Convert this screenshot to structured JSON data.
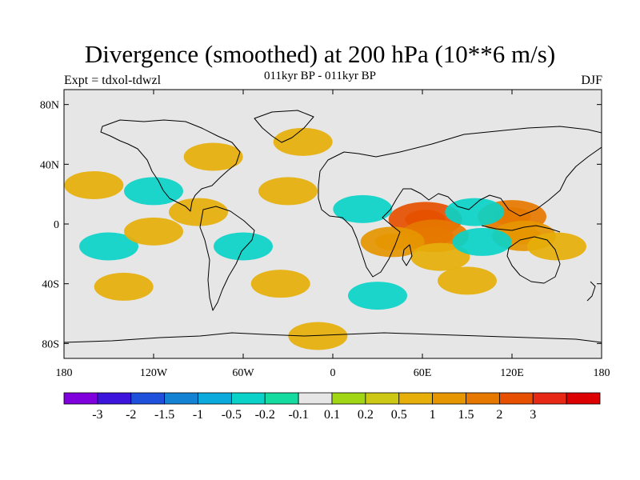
{
  "title": "Divergence (smoothed) at 200 hPa (10**6 m/s)",
  "left_label": "Expt = tdxol-tdwzl",
  "center_label": "011kyr BP - 011kyr BP",
  "right_label": "DJF",
  "map": {
    "projection": "cylindrical-equidistant",
    "lon_range": [
      -180,
      180
    ],
    "lat_range": [
      -90,
      90
    ],
    "background_color": "#e6e6e6",
    "lon_ticks": [
      {
        "value": -180,
        "label": "180"
      },
      {
        "value": -120,
        "label": "120W"
      },
      {
        "value": -60,
        "label": "60W"
      },
      {
        "value": 0,
        "label": "0"
      },
      {
        "value": 60,
        "label": "60E"
      },
      {
        "value": 120,
        "label": "120E"
      },
      {
        "value": 180,
        "label": "180"
      }
    ],
    "lat_ticks": [
      {
        "value": 80,
        "label": "80N"
      },
      {
        "value": 40,
        "label": "40N"
      },
      {
        "value": 0,
        "label": "0"
      },
      {
        "value": -40,
        "label": "40S"
      },
      {
        "value": -80,
        "label": "80S"
      }
    ]
  },
  "colorbar": {
    "colors": [
      "#7f00dc",
      "#3c14dc",
      "#1e50dc",
      "#1482d2",
      "#0aaadc",
      "#0ad2c8",
      "#14dca0",
      "#e6e6e6",
      "#a0d614",
      "#cdc814",
      "#e6af0a",
      "#e69600",
      "#e67800",
      "#e65000",
      "#e62814",
      "#dc0000"
    ],
    "labels": [
      "-3",
      "-2",
      "-1.5",
      "-1",
      "-0.5",
      "-0.2",
      "-0.1",
      "0.1",
      "0.2",
      "0.5",
      "1",
      "1.5",
      "2",
      "3"
    ]
  },
  "chart_data": {
    "type": "heatmap",
    "title": "Divergence (smoothed) at 200 hPa (10**6 m/s)",
    "subtitle": "011kyr BP - 011kyr BP",
    "xlim": [
      -180,
      180
    ],
    "ylim": [
      -90,
      90
    ],
    "levels": [
      -3,
      -2,
      -1.5,
      -1,
      -0.5,
      -0.2,
      -0.1,
      0.1,
      0.2,
      0.5,
      1,
      1.5,
      2,
      3
    ],
    "regions": [
      {
        "lon": 62,
        "lat": 3,
        "value": 2.0
      },
      {
        "lon": 68,
        "lat": -8,
        "value": 1.5
      },
      {
        "lon": 40,
        "lat": -12,
        "value": 1.0
      },
      {
        "lon": 72,
        "lat": -22,
        "value": 0.5
      },
      {
        "lon": 120,
        "lat": 5,
        "value": 1.5
      },
      {
        "lon": 128,
        "lat": -8,
        "value": 1.0
      },
      {
        "lon": 150,
        "lat": -15,
        "value": 0.5
      },
      {
        "lon": 95,
        "lat": 8,
        "value": -0.5
      },
      {
        "lon": 100,
        "lat": -12,
        "value": -0.5
      },
      {
        "lon": 20,
        "lat": 10,
        "value": -0.5
      },
      {
        "lon": -30,
        "lat": 22,
        "value": 0.5
      },
      {
        "lon": -90,
        "lat": 8,
        "value": 0.5
      },
      {
        "lon": -120,
        "lat": 22,
        "value": -0.5
      },
      {
        "lon": -160,
        "lat": 26,
        "value": 0.5
      },
      {
        "lon": -150,
        "lat": -15,
        "value": -0.5
      },
      {
        "lon": -120,
        "lat": -5,
        "value": 0.5
      },
      {
        "lon": -60,
        "lat": -15,
        "value": -0.5
      },
      {
        "lon": -35,
        "lat": -40,
        "value": 0.5
      },
      {
        "lon": -140,
        "lat": -42,
        "value": 0.5
      },
      {
        "lon": 90,
        "lat": -38,
        "value": 0.5
      },
      {
        "lon": 30,
        "lat": -48,
        "value": -0.5
      },
      {
        "lon": -80,
        "lat": 45,
        "value": 0.5
      },
      {
        "lon": -20,
        "lat": 55,
        "value": 0.5
      },
      {
        "lon": -10,
        "lat": -75,
        "value": 0.5
      }
    ]
  }
}
